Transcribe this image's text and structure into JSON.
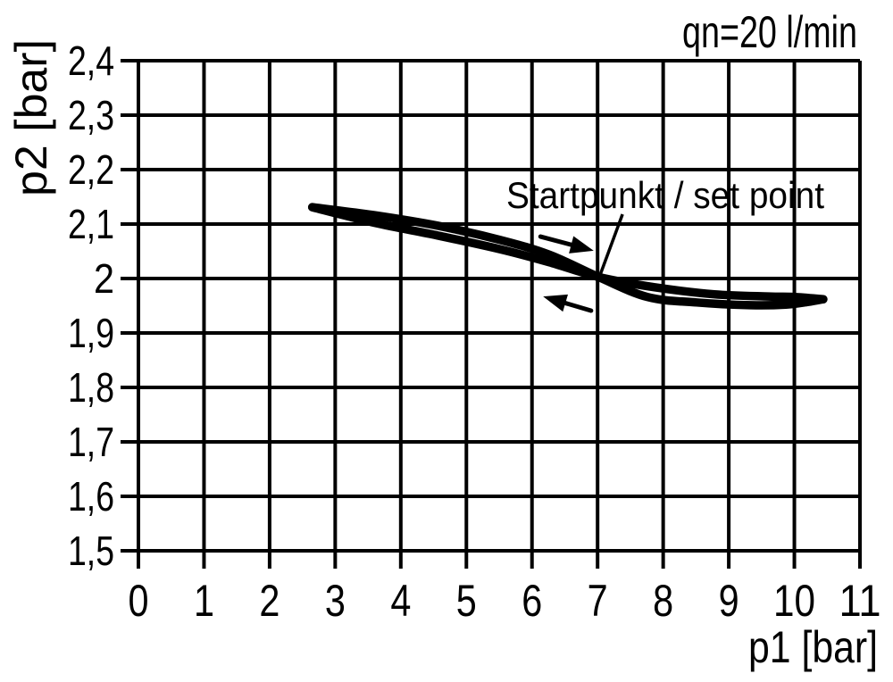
{
  "chart_data": {
    "type": "line",
    "title": "qn=20 l/min",
    "xlabel": "p1 [bar]",
    "ylabel": "p2 [bar]",
    "xlim": [
      0,
      11
    ],
    "ylim": [
      1.5,
      2.4
    ],
    "grid": true,
    "x_ticks": {
      "values": [
        0,
        1,
        2,
        3,
        4,
        5,
        6,
        7,
        8,
        9,
        10,
        11
      ],
      "labels": [
        "0",
        "1",
        "2",
        "3",
        "4",
        "5",
        "6",
        "7",
        "8",
        "9",
        "10",
        "11"
      ]
    },
    "y_ticks": {
      "values": [
        2.4,
        2.3,
        2.2,
        2.1,
        2.0,
        1.9,
        1.8,
        1.7,
        1.6,
        1.5
      ],
      "labels": [
        "2,4",
        "2,3",
        "2,2",
        "2,1",
        "2",
        "1,9",
        "1,8",
        "1,7",
        "1,6",
        "1,5"
      ]
    },
    "series": [
      {
        "name": "hysteresis-forward-branch",
        "points": [
          [
            2.65,
            2.131
          ],
          [
            3.61,
            2.116
          ],
          [
            4.56,
            2.097
          ],
          [
            5.51,
            2.071
          ],
          [
            6.26,
            2.044
          ],
          [
            7.01,
            2.003
          ],
          [
            7.76,
            1.966
          ],
          [
            8.51,
            1.956
          ],
          [
            9.33,
            1.951
          ],
          [
            9.87,
            1.952
          ],
          [
            10.21,
            1.957
          ],
          [
            10.44,
            1.962
          ]
        ]
      },
      {
        "name": "hysteresis-return-branch",
        "points": [
          [
            2.65,
            2.131
          ],
          [
            3.61,
            2.102
          ],
          [
            4.56,
            2.079
          ],
          [
            5.51,
            2.054
          ],
          [
            6.26,
            2.03
          ],
          [
            7.01,
            2.003
          ],
          [
            7.87,
            1.984
          ],
          [
            8.78,
            1.971
          ],
          [
            9.6,
            1.967
          ],
          [
            10.01,
            1.966
          ],
          [
            10.44,
            1.962
          ]
        ]
      }
    ],
    "annotations": {
      "set_point_label": {
        "text": "Startpunkt / set point",
        "x": 5.61,
        "y": 2.129
      },
      "leader_line": {
        "from": [
          7.38,
          2.118
        ],
        "to": [
          7.04,
          2.007
        ]
      },
      "arrows": [
        {
          "name": "forward-direction-arrow",
          "from": [
            6.13,
            2.077
          ],
          "to": [
            6.94,
            2.051
          ]
        },
        {
          "name": "return-direction-arrow",
          "from": [
            6.9,
            1.941
          ],
          "to": [
            6.17,
            1.967
          ]
        }
      ]
    },
    "colors": {
      "line": "#000000",
      "grid": "#000000",
      "background": "#ffffff",
      "text": "#000000"
    }
  }
}
